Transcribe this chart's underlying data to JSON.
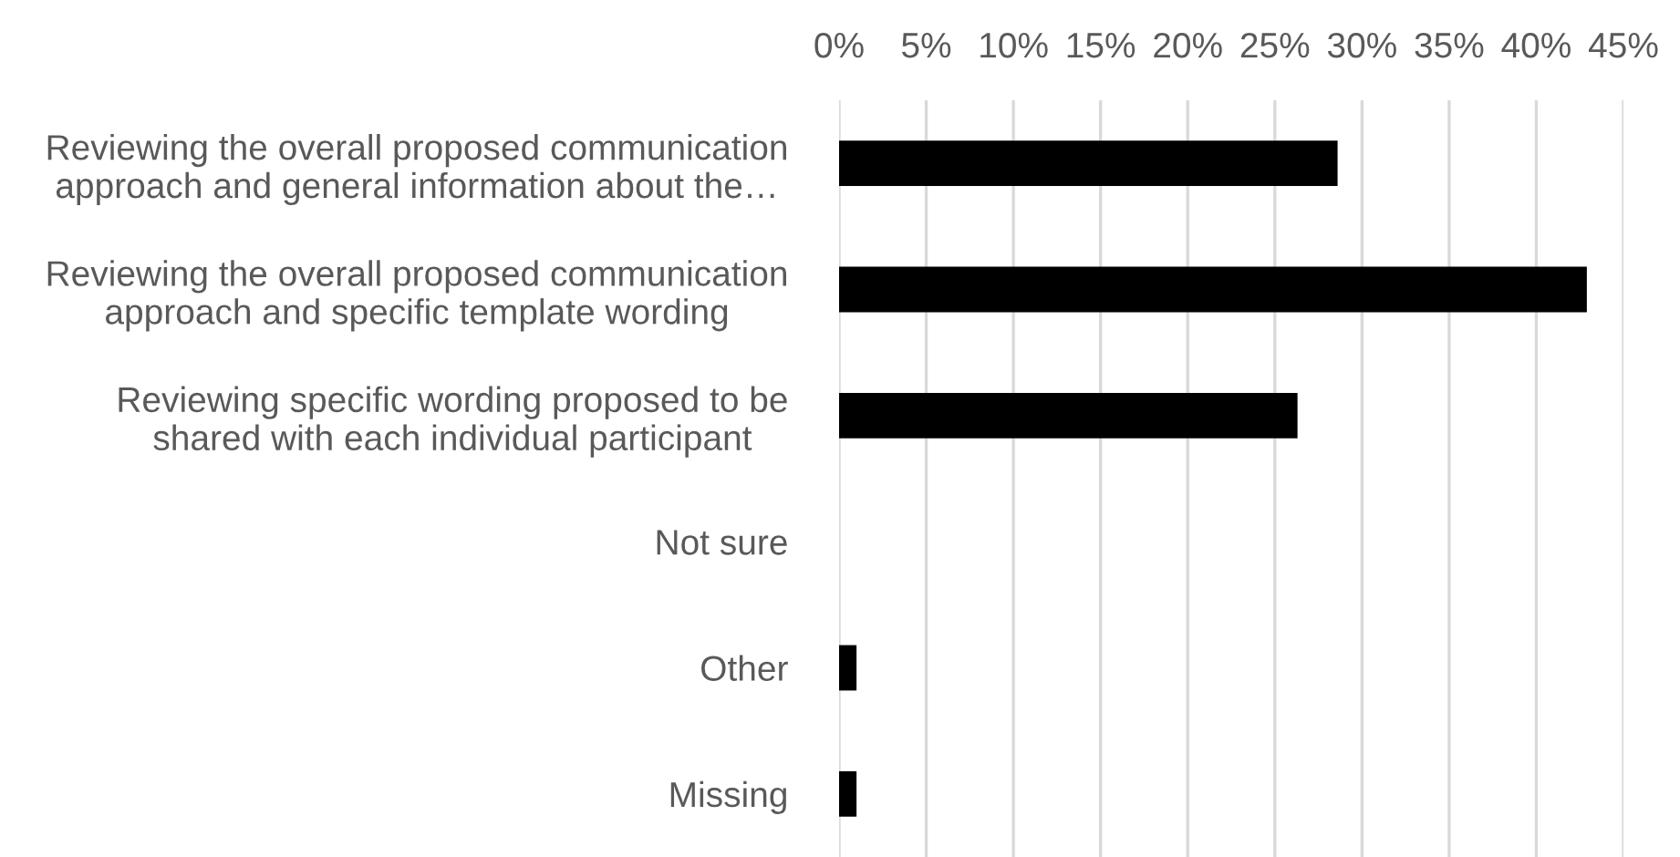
{
  "chart_data": {
    "type": "bar",
    "orientation": "horizontal",
    "categories": [
      "Reviewing the overall proposed communication\napproach and general information about the…",
      "Reviewing the overall proposed communication\napproach and specific template wording",
      "Reviewing specific wording proposed to be\nshared with each individual participant",
      "Not sure",
      "Other",
      "Missing"
    ],
    "values": [
      28.6,
      42.9,
      26.3,
      0,
      1.0,
      1.0
    ],
    "color": "#000000",
    "xlim": [
      0,
      45
    ],
    "xticks": [
      {
        "value": 0,
        "label": "0%"
      },
      {
        "value": 5,
        "label": "5%"
      },
      {
        "value": 10,
        "label": "10%"
      },
      {
        "value": 15,
        "label": "15%"
      },
      {
        "value": 20,
        "label": "20%"
      },
      {
        "value": 25,
        "label": "25%"
      },
      {
        "value": 30,
        "label": "30%"
      },
      {
        "value": 35,
        "label": "35%"
      },
      {
        "value": 40,
        "label": "40%"
      },
      {
        "value": 45,
        "label": "45%"
      }
    ],
    "grid": "x"
  }
}
